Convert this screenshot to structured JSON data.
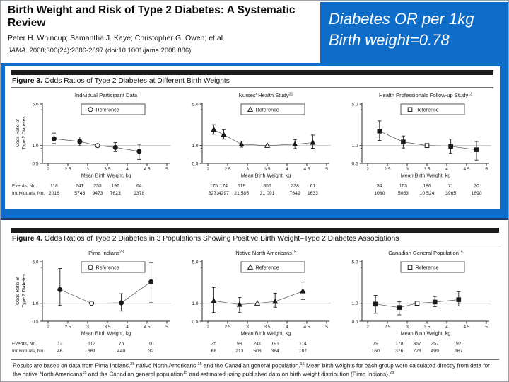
{
  "page": {
    "header": {
      "title": "Birth Weight and Risk of Type 2 Diabetes: A Systematic Review",
      "authors": "Peter H. Whincup; Samantha J. Kaye; Christopher G. Owen; et al.",
      "citation_journal": "JAMA.",
      "citation_rest": " 2008;300(24):2886-2897 (doi:10.1001/jama.2008.886)"
    },
    "callout": {
      "line1": "Diabetes OR per 1kg",
      "line2": "Birth weight=0.78"
    },
    "colors": {
      "accent_blue": "#0e6dc9",
      "navy_edge": "#1b3a66",
      "header_bar": "#1b1b1b",
      "reference_line": "#c0c0c0"
    },
    "row_labels": {
      "events": "Events, No.",
      "individuals": "Individuals, No."
    },
    "legend_label": "Reference",
    "footnote": [
      {
        "t": "Results are based on data from Pima Indians,"
      },
      {
        "s": "28"
      },
      {
        "t": " native North Americans,"
      },
      {
        "s": "15"
      },
      {
        "t": " and the Canadian general population."
      },
      {
        "s": "15"
      },
      {
        "t": " Mean birth weights for each group were calculated directly from data for the native North Americans"
      },
      {
        "s": "15"
      },
      {
        "t": " and the Canadian general population"
      },
      {
        "s": "15"
      },
      {
        "t": " and estimated using published data on birth weight distribution (Pima Indians)."
      },
      {
        "s": "28"
      }
    ]
  },
  "chart_data": [
    {
      "type": "scatter",
      "figure": "Figure 3.",
      "caption": "Odds Ratios of Type 2 Diabetes at Different Birth Weights",
      "xlabel": "Mean Birth Weight, kg",
      "ylabel_lines": [
        "Odds Ratio of",
        "Type 2 Diabetes"
      ],
      "x_range": [
        2,
        5
      ],
      "x_ticks": [
        "2",
        "2.5",
        "3",
        "3.5",
        "4",
        "4.5",
        "5"
      ],
      "y_scale": "log",
      "y_range": [
        0.5,
        5.0
      ],
      "y_ticks": [
        "5.0",
        "1.0",
        "0.5"
      ],
      "y_minor_ticks": [
        4,
        0.9
      ],
      "reference_line": 1.0,
      "panels": [
        {
          "title": "Individual Participant Data",
          "sup": "",
          "marker": "circle",
          "points": [
            {
              "x": 2.15,
              "or": 1.3,
              "lo": 1.08,
              "hi": 1.62
            },
            {
              "x": 2.8,
              "or": 1.17,
              "lo": 0.99,
              "hi": 1.4
            },
            {
              "x": 3.25,
              "or": 1.0,
              "ref": true
            },
            {
              "x": 3.7,
              "or": 0.93,
              "lo": 0.79,
              "hi": 1.12
            },
            {
              "x": 4.3,
              "or": 0.8,
              "lo": 0.58,
              "hi": 1.05
            }
          ],
          "events": [
            "118",
            "241",
            "253",
            "196",
            "64"
          ],
          "individuals": [
            "2016",
            "5743",
            "9473",
            "7623",
            "2378"
          ]
        },
        {
          "title": "Nurses' Health Study",
          "sup": "21",
          "marker": "triangle",
          "points": [
            {
              "x": 2.15,
              "or": 1.85,
              "lo": 1.55,
              "hi": 2.25
            },
            {
              "x": 2.4,
              "or": 1.52,
              "lo": 1.28,
              "hi": 1.85
            },
            {
              "x": 2.85,
              "or": 1.05,
              "lo": 0.94,
              "hi": 1.18
            },
            {
              "x": 3.5,
              "or": 1.0,
              "ref": true
            },
            {
              "x": 4.2,
              "or": 1.05,
              "lo": 0.89,
              "hi": 1.26
            },
            {
              "x": 4.65,
              "or": 1.12,
              "lo": 0.9,
              "hi": 1.5
            }
          ],
          "events": [
            "175",
            "174",
            "619",
            "856",
            "238",
            "61"
          ],
          "individuals": [
            "3271",
            "4297",
            "21 585",
            "31 091",
            "7649",
            "1633"
          ]
        },
        {
          "title": "Health Professionals Follow-up Study",
          "sup": "13",
          "marker": "square",
          "points": [
            {
              "x": 2.3,
              "or": 1.75,
              "lo": 1.22,
              "hi": 2.6
            },
            {
              "x": 2.9,
              "or": 1.15,
              "lo": 0.91,
              "hi": 1.45
            },
            {
              "x": 3.5,
              "or": 1.0,
              "ref": true
            },
            {
              "x": 4.1,
              "or": 0.97,
              "lo": 0.74,
              "hi": 1.28
            },
            {
              "x": 4.75,
              "or": 0.85,
              "lo": 0.57,
              "hi": 1.17
            }
          ],
          "events": [
            "34",
            "103",
            "186",
            "71",
            "30"
          ],
          "individuals": [
            "1080",
            "5053",
            "10 524",
            "3965",
            "1690"
          ]
        }
      ]
    },
    {
      "type": "scatter",
      "figure": "Figure 4.",
      "caption": "Odds Ratios of Type 2 Diabetes in 3 Populations Showing Positive Birth Weight–Type 2 Diabetes Associations",
      "xlabel": "Mean Birth Weight, kg",
      "ylabel_lines": [
        "Odds Ratio of",
        "Type 2 Diabetes"
      ],
      "x_range": [
        2,
        5
      ],
      "x_ticks": [
        "2",
        "2.5",
        "3",
        "3.5",
        "4",
        "4.5",
        "5"
      ],
      "y_scale": "log",
      "y_range": [
        0.5,
        5.0
      ],
      "y_ticks": [
        "5.0",
        "1.0",
        "0.5"
      ],
      "y_minor_ticks": [
        4,
        0.9
      ],
      "reference_line": 1.0,
      "panels": [
        {
          "title": "Pima Indians",
          "sup": "28",
          "marker": "circle",
          "points": [
            {
              "x": 2.3,
              "or": 1.7,
              "lo": 0.92,
              "hi": 3.85
            },
            {
              "x": 3.1,
              "or": 1.0,
              "ref": true
            },
            {
              "x": 3.85,
              "or": 1.02,
              "lo": 0.74,
              "hi": 1.45
            },
            {
              "x": 4.6,
              "or": 2.3,
              "lo": 1.02,
              "hi": 4.85
            }
          ],
          "events": [
            "12",
            "112",
            "76",
            "10"
          ],
          "individuals": [
            "46",
            "661",
            "440",
            "32"
          ]
        },
        {
          "title": "Native North Americans",
          "sup": "15",
          "marker": "triangle",
          "points": [
            {
              "x": 2.15,
              "or": 1.1,
              "lo": 0.7,
              "hi": 1.85
            },
            {
              "x": 2.8,
              "or": 0.95,
              "lo": 0.7,
              "hi": 1.25
            },
            {
              "x": 3.25,
              "or": 1.0,
              "ref": true
            },
            {
              "x": 3.7,
              "or": 1.07,
              "lo": 0.86,
              "hi": 1.48
            },
            {
              "x": 4.4,
              "or": 1.6,
              "lo": 1.16,
              "hi": 2.28
            }
          ],
          "events": [
            "35",
            "98",
            "241",
            "191",
            "114"
          ],
          "individuals": [
            "68",
            "213",
            "506",
            "384",
            "187"
          ]
        },
        {
          "title": "Canadian General Population",
          "sup": "15",
          "marker": "square",
          "points": [
            {
              "x": 2.2,
              "or": 0.97,
              "lo": 0.68,
              "hi": 1.36
            },
            {
              "x": 2.8,
              "or": 0.85,
              "lo": 0.64,
              "hi": 1.06
            },
            {
              "x": 3.25,
              "or": 1.0,
              "ref": true
            },
            {
              "x": 3.7,
              "or": 1.05,
              "lo": 0.88,
              "hi": 1.3
            },
            {
              "x": 4.3,
              "or": 1.15,
              "lo": 0.9,
              "hi": 1.57
            }
          ],
          "events": [
            "79",
            "170",
            "367",
            "257",
            "92"
          ],
          "individuals": [
            "160",
            "376",
            "728",
            "499",
            "167"
          ]
        }
      ]
    }
  ]
}
